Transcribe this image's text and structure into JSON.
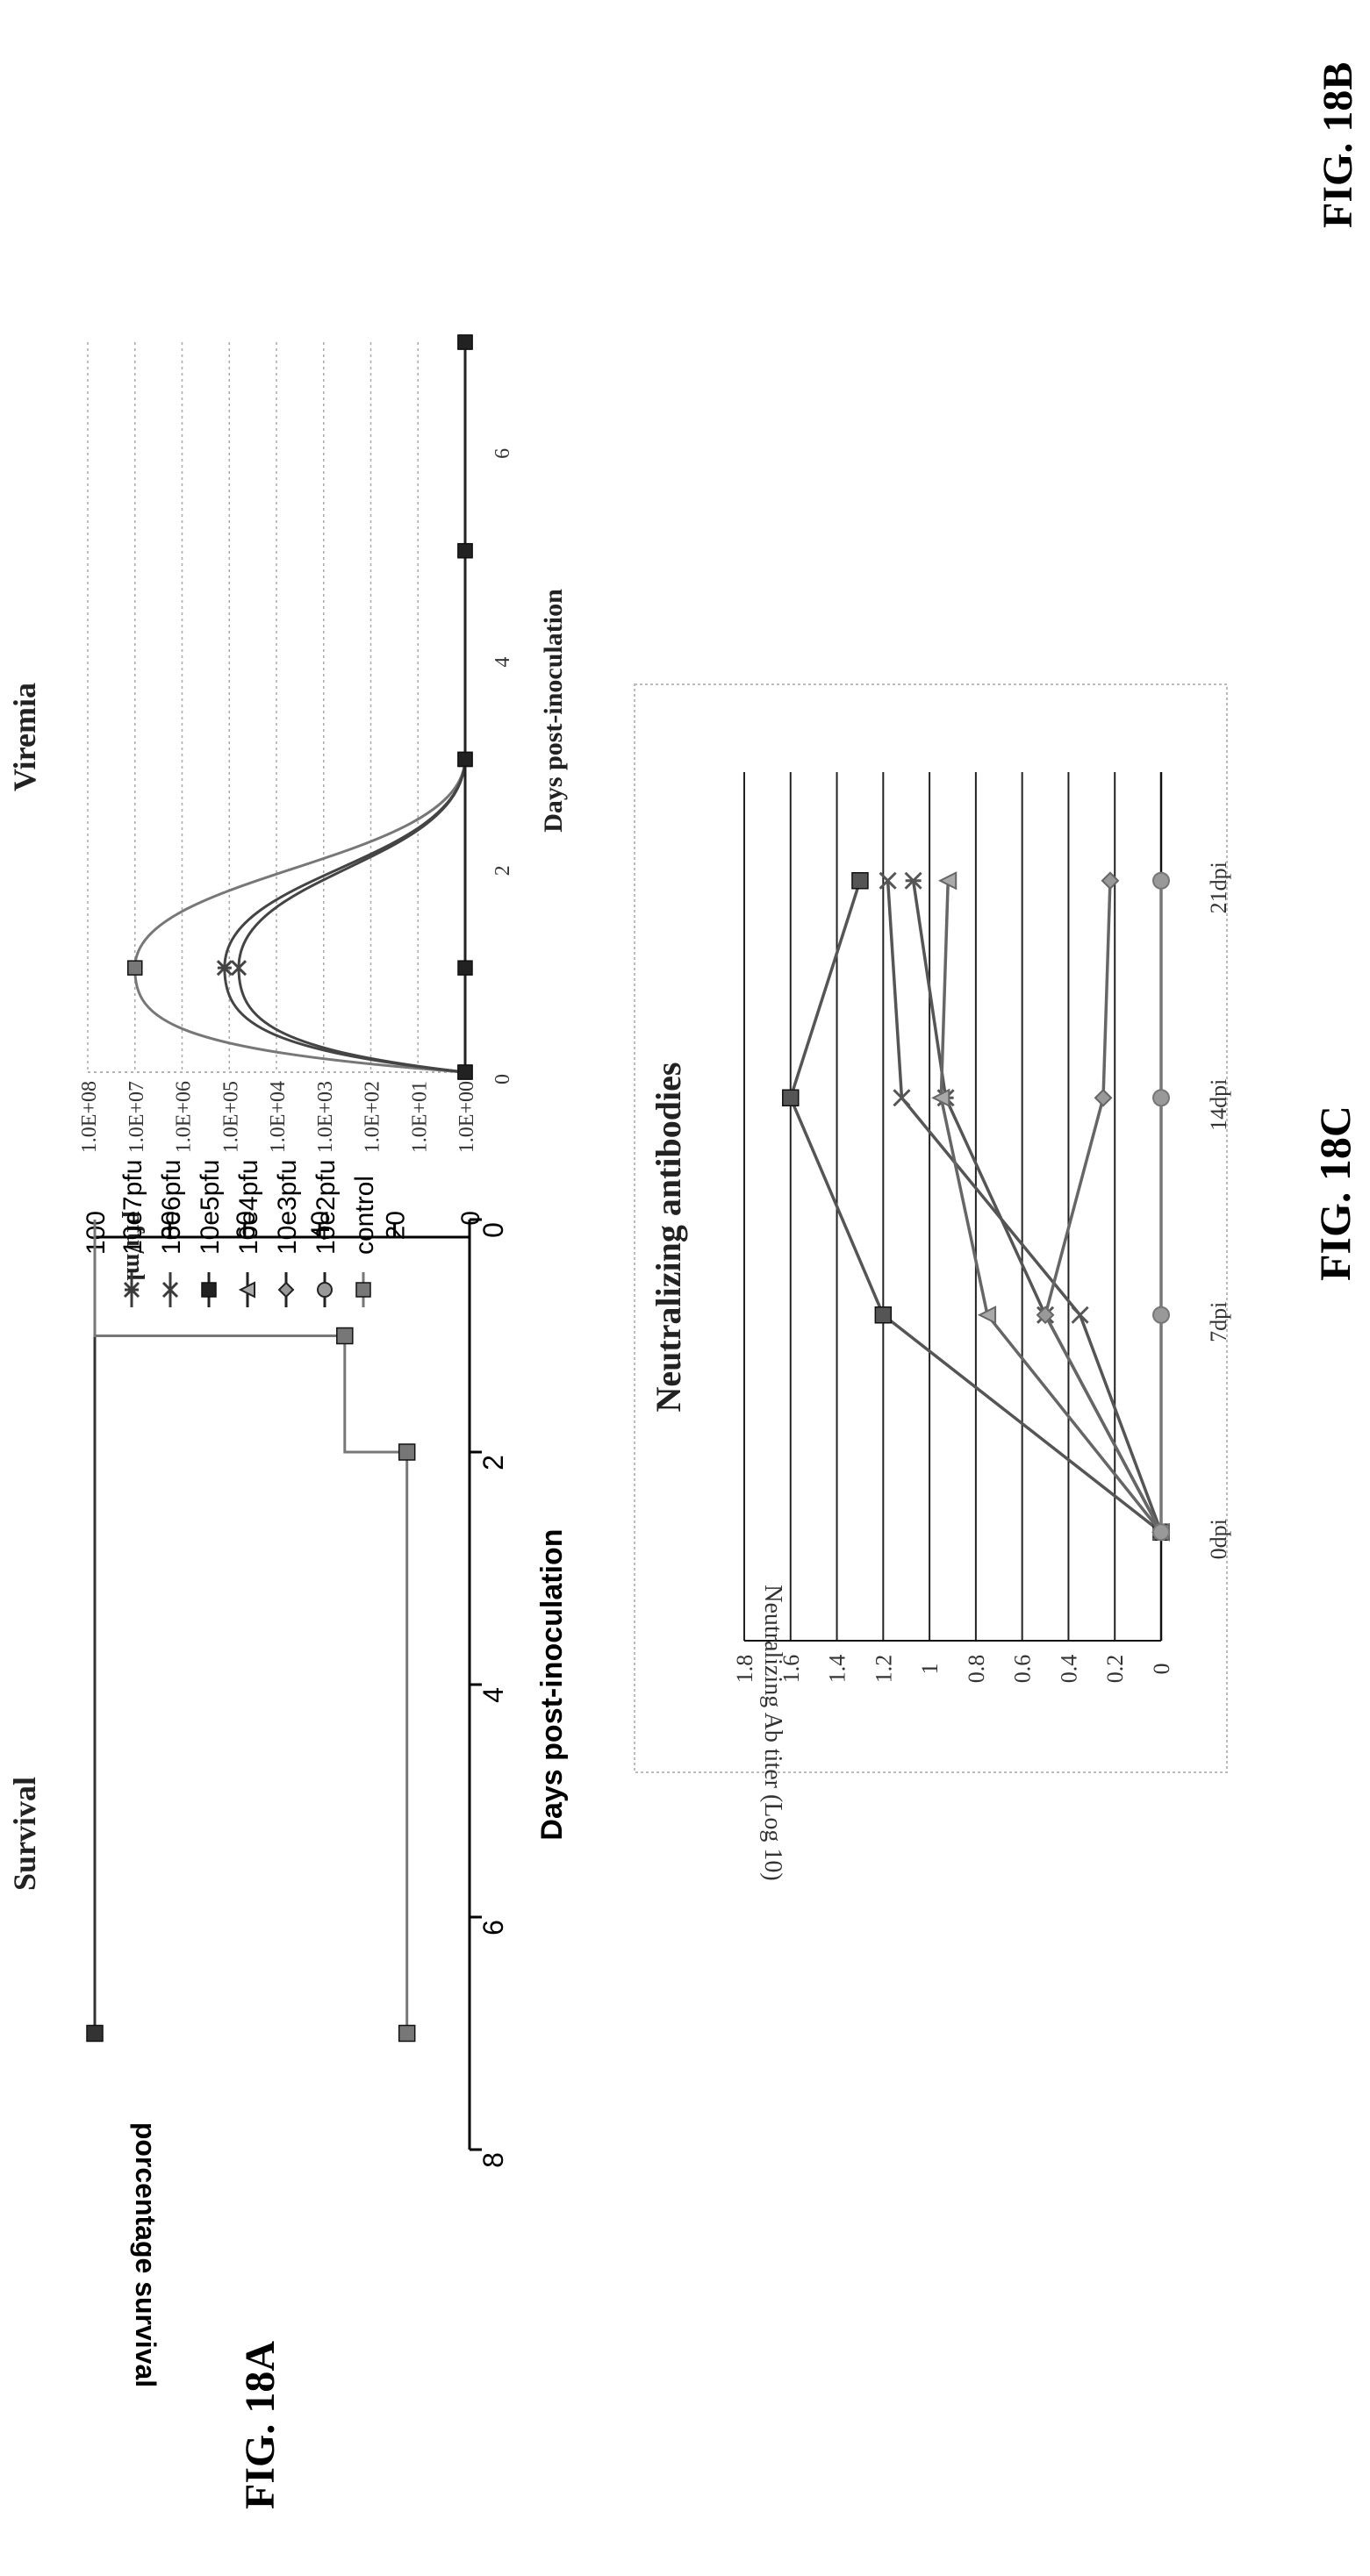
{
  "page": {
    "fig_a_label": "FIG. 18A",
    "fig_b_label": "FIG. 18B",
    "fig_c_label": "FIG. 18C"
  },
  "legend": {
    "items": [
      {
        "label": "10e7pfu",
        "color": "#3a3a3a",
        "marker": "star"
      },
      {
        "label": "10e6pfu",
        "color": "#3a3a3a",
        "marker": "x"
      },
      {
        "label": "10e5pfu",
        "color": "#222222",
        "marker": "square"
      },
      {
        "label": "10e4pfu",
        "color": "#222222",
        "marker": "triangle"
      },
      {
        "label": "10e3pfu",
        "color": "#222222",
        "marker": "diamond"
      },
      {
        "label": "10e2pfu",
        "color": "#222222",
        "marker": "circle"
      },
      {
        "label": "control",
        "color": "#777777",
        "marker": "square"
      }
    ]
  },
  "chart_data": [
    {
      "id": "survival",
      "type": "line",
      "title": "Survival",
      "xlabel": "Days post-inoculation",
      "ylabel": "porcentage survival",
      "xlim": [
        0,
        8
      ],
      "ylim": [
        0,
        100
      ],
      "xticks": [
        "0",
        "2",
        "4",
        "6",
        "8"
      ],
      "yticks": [
        "0",
        "20",
        "40",
        "60",
        "80",
        "100"
      ],
      "step": true,
      "series": [
        {
          "color": "#333333",
          "marker": "square",
          "x": [
            0,
            7
          ],
          "y": [
            100,
            100
          ],
          "marker_points": [
            7
          ]
        },
        {
          "color": "#777777",
          "marker": "square",
          "x": [
            0,
            1,
            1,
            2,
            2,
            7
          ],
          "y": [
            100,
            100,
            33.3,
            33.3,
            16.7,
            16.7
          ],
          "marker_points": [
            1,
            2,
            7
          ]
        }
      ]
    },
    {
      "id": "viremia",
      "type": "line",
      "title": "Viremia",
      "xlabel": "Days post-inoculation",
      "ylabel": "pfu/ml",
      "xlim": [
        0,
        7
      ],
      "ylim": [
        0,
        8
      ],
      "log_scale": true,
      "xticks": [
        "0",
        "2",
        "4",
        "6"
      ],
      "yticks": [
        "1.0E+00",
        "1.0E+01",
        "1.0E+02",
        "1.0E+03",
        "1.0E+04",
        "1.0E+05",
        "1.0E+06",
        "1.0E+07",
        "1.0E+08"
      ],
      "grid": true,
      "series": [
        {
          "color": "#777777",
          "marker": "square",
          "x": [
            0,
            1,
            3,
            5,
            7
          ],
          "y": [
            0,
            7,
            0,
            0,
            0
          ]
        },
        {
          "color": "#444444",
          "marker": "star",
          "x": [
            0,
            1,
            3,
            5,
            7
          ],
          "y": [
            0,
            5.1,
            0,
            0,
            0
          ]
        },
        {
          "color": "#444444",
          "marker": "x",
          "x": [
            0,
            1,
            3,
            5,
            7
          ],
          "y": [
            0,
            4.8,
            0,
            0,
            0
          ]
        },
        {
          "color": "#222222",
          "marker": "square",
          "x": [
            0,
            1,
            3,
            5,
            7
          ],
          "y": [
            0,
            0,
            0,
            0,
            0
          ]
        }
      ]
    },
    {
      "id": "neutralizing",
      "type": "line",
      "title": "Neutralizing antibodies",
      "xlabel": "",
      "ylabel": "Neutralizing Ab titer (Log 10)",
      "categories": [
        "0dpi",
        "7dpi",
        "14dpi",
        "21dpi"
      ],
      "ylim": [
        0,
        1.8
      ],
      "yticks": [
        "0",
        "0.2",
        "0.4",
        "0.6",
        "0.8",
        "1",
        "1.2",
        "1.4",
        "1.6",
        "1.8"
      ],
      "grid": true,
      "series": [
        {
          "color": "#555555",
          "marker": "square",
          "values": [
            0,
            1.2,
            1.6,
            1.3
          ]
        },
        {
          "color": "#555555",
          "marker": "x",
          "values": [
            0,
            0.35,
            1.12,
            1.18
          ]
        },
        {
          "color": "#555555",
          "marker": "star",
          "values": [
            0,
            0.5,
            0.93,
            1.07
          ]
        },
        {
          "color": "#666666",
          "marker": "triangle",
          "values": [
            0,
            0.75,
            0.95,
            0.92
          ]
        },
        {
          "color": "#666666",
          "marker": "diamond",
          "values": [
            0,
            0.5,
            0.25,
            0.22
          ]
        },
        {
          "color": "#777777",
          "marker": "circle",
          "values": [
            0,
            0,
            0,
            0
          ]
        }
      ]
    }
  ]
}
